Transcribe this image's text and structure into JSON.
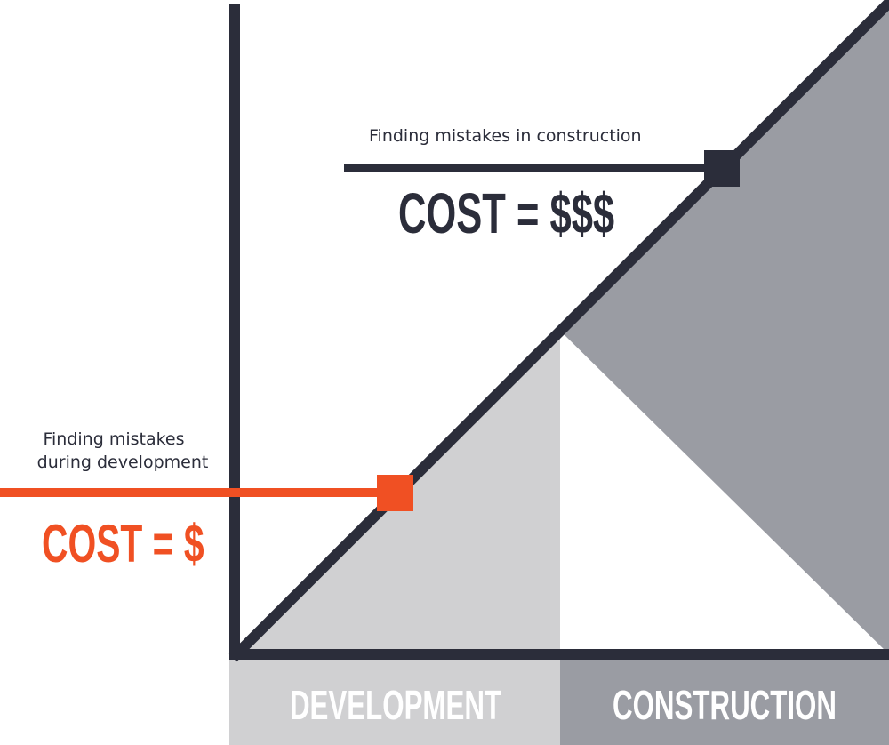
{
  "colors": {
    "axis": "#2b2d3a",
    "accent": "#f05023",
    "development_fill": "#d0d0d2",
    "construction_fill": "#9a9ca3"
  },
  "construction_annotation": {
    "caption": "Finding mistakes in construction",
    "cost": "COST = $$$"
  },
  "development_annotation": {
    "caption_line1": "Finding mistakes",
    "caption_line2": "during development",
    "cost": "COST = $"
  },
  "stages": [
    {
      "label": "DEVELOPMENT"
    },
    {
      "label": "CONSTRUCTION"
    }
  ]
}
